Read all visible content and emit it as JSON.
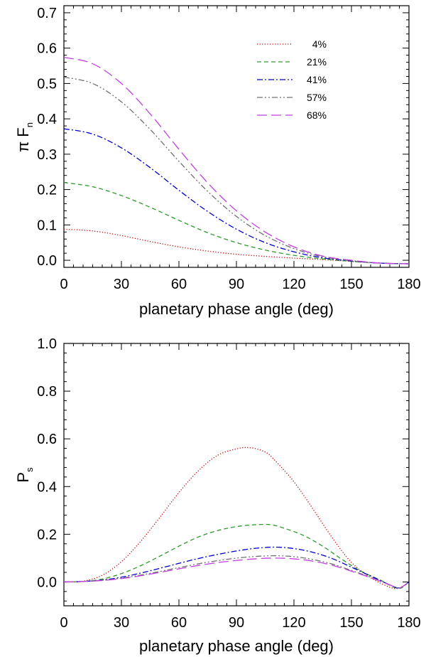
{
  "chart_data": [
    {
      "type": "line",
      "xlabel": "planetary phase angle (deg)",
      "ylabel": {
        "main": "π F",
        "sub": "n"
      },
      "xlim": [
        0,
        180
      ],
      "ylim": [
        -0.02,
        0.72
      ],
      "xticks": [
        0,
        30,
        60,
        90,
        120,
        150,
        180
      ],
      "xtick_labels": [
        "0",
        "30",
        "60",
        "90",
        "120",
        "150",
        "180"
      ],
      "yticks": [
        0.0,
        0.1,
        0.2,
        0.3,
        0.4,
        0.5,
        0.6,
        0.7
      ],
      "ytick_labels": [
        "0.0",
        "0.1",
        "0.2",
        "0.3",
        "0.4",
        "0.5",
        "0.6",
        "0.7"
      ],
      "legend_position": "top-right",
      "series": [
        {
          "name": "4%",
          "color": "#c00000",
          "style": "dotted",
          "x": [
            0,
            15,
            30,
            45,
            60,
            75,
            90,
            105,
            120,
            135,
            150,
            165,
            180
          ],
          "y": [
            0.088,
            0.083,
            0.07,
            0.053,
            0.038,
            0.026,
            0.017,
            0.011,
            0.006,
            0.002,
            -0.003,
            -0.008,
            -0.01
          ]
        },
        {
          "name": "21%",
          "color": "#2e9a2e",
          "style": "dashed",
          "x": [
            0,
            15,
            30,
            45,
            60,
            75,
            90,
            105,
            120,
            135,
            150,
            165,
            180
          ],
          "y": [
            0.22,
            0.208,
            0.183,
            0.15,
            0.113,
            0.078,
            0.05,
            0.029,
            0.014,
            0.004,
            -0.003,
            -0.008,
            -0.01
          ]
        },
        {
          "name": "41%",
          "color": "#0000c8",
          "style": "dashdot",
          "x": [
            0,
            15,
            30,
            45,
            60,
            75,
            90,
            105,
            120,
            135,
            150,
            165,
            180
          ],
          "y": [
            0.372,
            0.357,
            0.318,
            0.262,
            0.198,
            0.138,
            0.088,
            0.05,
            0.024,
            0.007,
            -0.002,
            -0.008,
            -0.01
          ]
        },
        {
          "name": "57%",
          "color": "#707070",
          "style": "dashdotdot",
          "x": [
            0,
            15,
            30,
            45,
            60,
            75,
            90,
            105,
            120,
            135,
            150,
            165,
            180
          ],
          "y": [
            0.518,
            0.5,
            0.448,
            0.37,
            0.28,
            0.195,
            0.124,
            0.07,
            0.033,
            0.01,
            -0.001,
            -0.008,
            -0.01
          ]
        },
        {
          "name": "68%",
          "color": "#c040e0",
          "style": "longdash",
          "x": [
            0,
            15,
            30,
            45,
            60,
            75,
            90,
            105,
            120,
            135,
            150,
            165,
            180
          ],
          "y": [
            0.574,
            0.556,
            0.5,
            0.414,
            0.314,
            0.219,
            0.14,
            0.08,
            0.038,
            0.012,
            0.0,
            -0.008,
            -0.01
          ]
        }
      ]
    },
    {
      "type": "line",
      "xlabel": "planetary phase angle (deg)",
      "ylabel": {
        "main": "P",
        "sub": "s"
      },
      "xlim": [
        0,
        180
      ],
      "ylim": [
        -0.1,
        1.0
      ],
      "xticks": [
        0,
        30,
        60,
        90,
        120,
        150,
        180
      ],
      "xtick_labels": [
        "0",
        "30",
        "60",
        "90",
        "120",
        "150",
        "180"
      ],
      "yticks": [
        0.0,
        0.2,
        0.4,
        0.6,
        0.8,
        1.0
      ],
      "ytick_labels": [
        "0.0",
        "0.2",
        "0.4",
        "0.6",
        "0.8",
        "1.0"
      ],
      "series": [
        {
          "name": "4%",
          "color": "#c00000",
          "style": "dotted",
          "x": [
            0,
            10,
            20,
            30,
            40,
            50,
            60,
            70,
            80,
            90,
            97,
            105,
            110,
            120,
            130,
            140,
            150,
            160,
            170,
            175,
            180
          ],
          "y": [
            0.0,
            0.003,
            0.028,
            0.085,
            0.17,
            0.27,
            0.375,
            0.465,
            0.53,
            0.558,
            0.563,
            0.545,
            0.51,
            0.42,
            0.305,
            0.185,
            0.082,
            0.018,
            -0.022,
            -0.025,
            0.0
          ]
        },
        {
          "name": "21%",
          "color": "#2e9a2e",
          "style": "dashed",
          "x": [
            0,
            10,
            20,
            30,
            40,
            50,
            60,
            70,
            80,
            90,
            100,
            108,
            115,
            125,
            135,
            145,
            155,
            165,
            172,
            176,
            180
          ],
          "y": [
            0.0,
            0.002,
            0.012,
            0.035,
            0.068,
            0.108,
            0.15,
            0.188,
            0.215,
            0.232,
            0.24,
            0.24,
            0.225,
            0.195,
            0.15,
            0.095,
            0.045,
            0.008,
            -0.022,
            -0.025,
            0.0
          ]
        },
        {
          "name": "41%",
          "color": "#0000c8",
          "style": "dashdot",
          "x": [
            0,
            10,
            20,
            30,
            40,
            50,
            60,
            70,
            80,
            90,
            100,
            110,
            120,
            130,
            140,
            150,
            160,
            170,
            175,
            180
          ],
          "y": [
            0.0,
            0.002,
            0.008,
            0.02,
            0.037,
            0.057,
            0.078,
            0.098,
            0.115,
            0.13,
            0.141,
            0.146,
            0.14,
            0.124,
            0.098,
            0.062,
            0.025,
            -0.012,
            -0.025,
            0.0
          ]
        },
        {
          "name": "57%",
          "color": "#707070",
          "style": "dashdotdot",
          "x": [
            0,
            10,
            20,
            30,
            40,
            50,
            60,
            70,
            80,
            90,
            100,
            110,
            120,
            130,
            140,
            150,
            160,
            170,
            175,
            180
          ],
          "y": [
            0.0,
            0.002,
            0.007,
            0.016,
            0.029,
            0.044,
            0.06,
            0.076,
            0.089,
            0.1,
            0.107,
            0.11,
            0.106,
            0.094,
            0.075,
            0.048,
            0.02,
            -0.012,
            -0.025,
            0.0
          ]
        },
        {
          "name": "68%",
          "color": "#c040e0",
          "style": "longdash",
          "x": [
            0,
            10,
            20,
            30,
            40,
            50,
            60,
            70,
            80,
            90,
            100,
            110,
            120,
            130,
            140,
            150,
            160,
            170,
            175,
            180
          ],
          "y": [
            0.0,
            0.002,
            0.006,
            0.014,
            0.026,
            0.04,
            0.055,
            0.069,
            0.081,
            0.09,
            0.097,
            0.1,
            0.097,
            0.087,
            0.07,
            0.045,
            0.018,
            -0.012,
            -0.025,
            0.0
          ]
        }
      ]
    }
  ]
}
